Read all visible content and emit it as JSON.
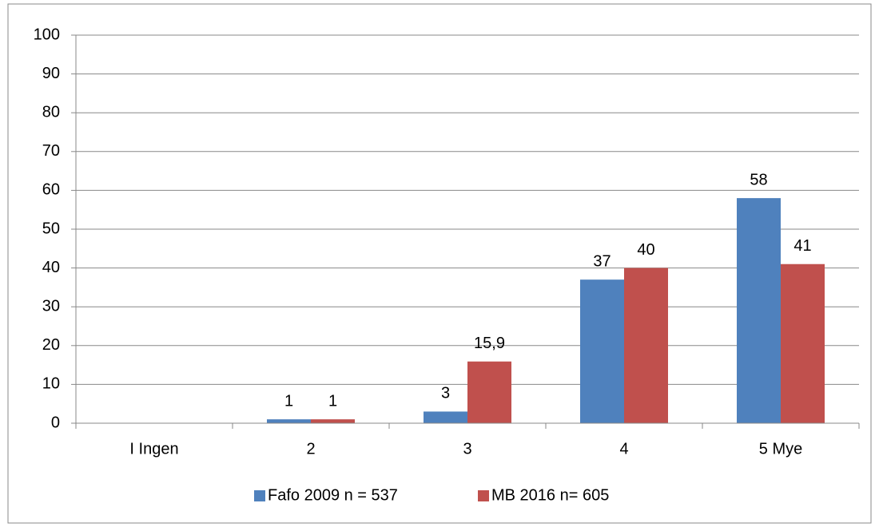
{
  "chart_data": {
    "type": "bar",
    "categories": [
      "I Ingen",
      "2",
      "3",
      "4",
      "5 Mye"
    ],
    "series": [
      {
        "name": "Fafo 2009 n = 537",
        "color": "#4f81bd",
        "values": [
          null,
          1,
          3,
          37,
          58
        ]
      },
      {
        "name": "MB 2016 n= 605",
        "color": "#c0504d",
        "values": [
          null,
          1,
          15.9,
          40,
          41
        ],
        "value_labels": [
          null,
          "1",
          "15,9",
          "40",
          "41"
        ]
      }
    ],
    "ylim": [
      0,
      100
    ],
    "yticks": [
      0,
      10,
      20,
      30,
      40,
      50,
      60,
      70,
      80,
      90,
      100
    ],
    "grid": true,
    "legend": "bottom"
  }
}
